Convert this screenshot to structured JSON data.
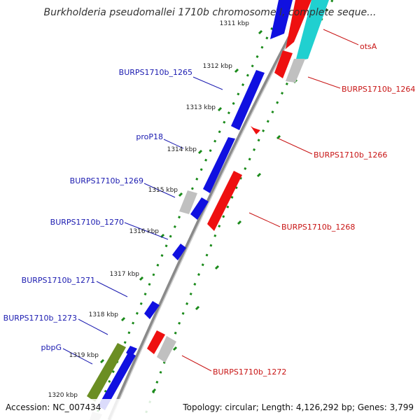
{
  "title": "Burkholderia pseudomallei 1710b chromosome I, complete seque...",
  "footer": {
    "accession": "Accession: NC_007434",
    "topology": "Topology: circular; Length: 4,126,292 bp; Genes: 3,799"
  },
  "ticks": [
    "1311 kbp",
    "1312 kbp",
    "1313 kbp",
    "1314 kbp",
    "1315 kbp",
    "1316 kbp",
    "1317 kbp",
    "1318 kbp",
    "1319 kbp",
    "1320 kbp"
  ],
  "labels_left": [
    "BURPS1710b_1265",
    "proP18",
    "BURPS1710b_1269",
    "BURPS1710b_1270",
    "BURPS1710b_1271",
    "BURPS1710b_1273",
    "pbpG"
  ],
  "labels_right": [
    "otsA",
    "BURPS1710b_1264",
    "BURPS1710b_1266",
    "BURPS1710b_1268",
    "BURPS1710b_1272"
  ],
  "colors": {
    "forward_gene": "#1010e0",
    "reverse_gene": "#ee1010",
    "pseudo_gene": "#c0c0c0",
    "rna_gene": "#20d0d0",
    "highlight_gene": "#6b8e23",
    "backbone": "#8a8a8a",
    "dotted_guides": "#1a8a1a"
  }
}
